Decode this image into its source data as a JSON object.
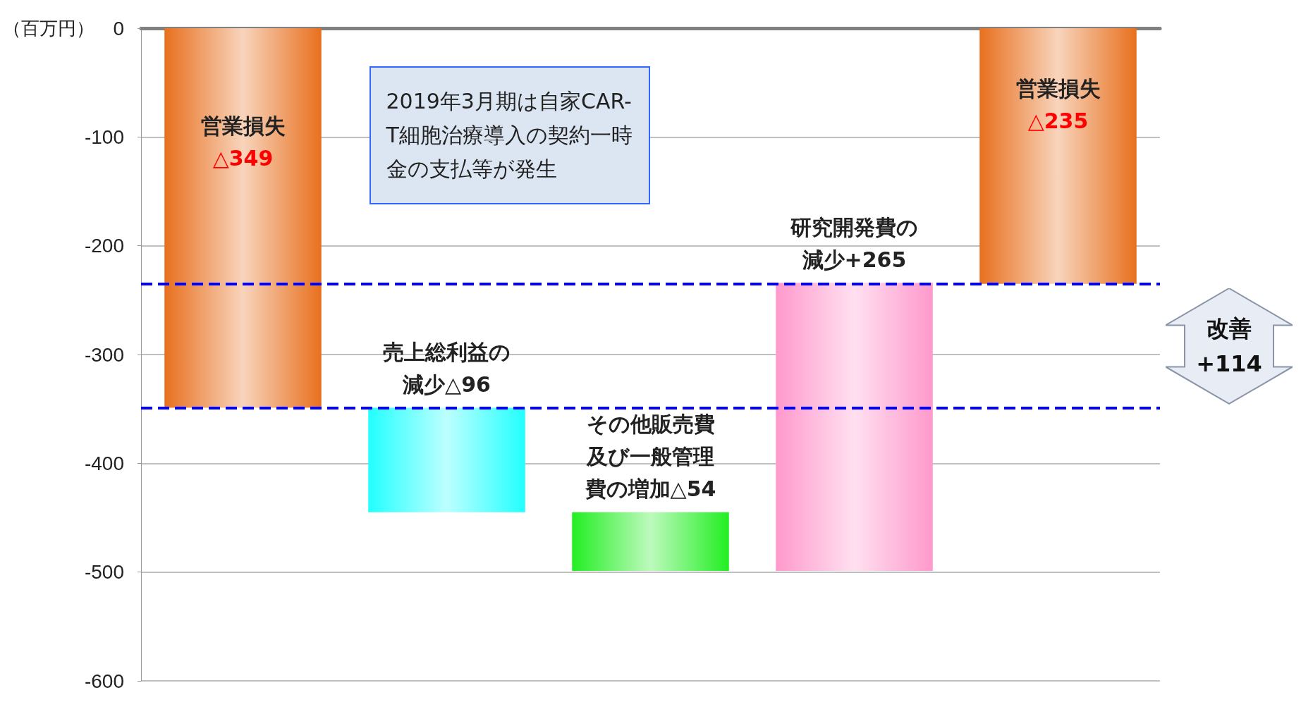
{
  "chart_data": {
    "type": "bar",
    "ylabel": "（百万円）",
    "categories": [
      null,
      null,
      null,
      null,
      null
    ],
    "values": [
      -349,
      -96,
      -54,
      265,
      -235
    ],
    "base": [
      0,
      -349,
      -445,
      -499,
      0
    ],
    "colors": [
      "#e8701e",
      "#22ffff",
      "#22ee22",
      "#ff99cc",
      "#e8701e"
    ],
    "value_labels": [
      "営業損失△349",
      "売上総利益の減少△96",
      "その他販売費及び一般管理費の増加△54",
      "研究開発費の減少+265",
      "営業損失△235"
    ],
    "ylim": [
      -600,
      0
    ],
    "yticks": [
      -600,
      -500,
      -400,
      -300,
      -200,
      -100,
      0
    ],
    "grid": "y",
    "ref_lines": [
      {
        "axis": "y",
        "value": -349,
        "color": "#0000ff",
        "line_style": "dashed"
      },
      {
        "axis": "y",
        "value": -235,
        "color": "#0000ff",
        "line_style": "dashed"
      }
    ],
    "annotations": [
      "2019年3月期は自家CAR-T細胞治療導入の契約一時金の支払等が発生",
      "改善+114"
    ]
  }
}
